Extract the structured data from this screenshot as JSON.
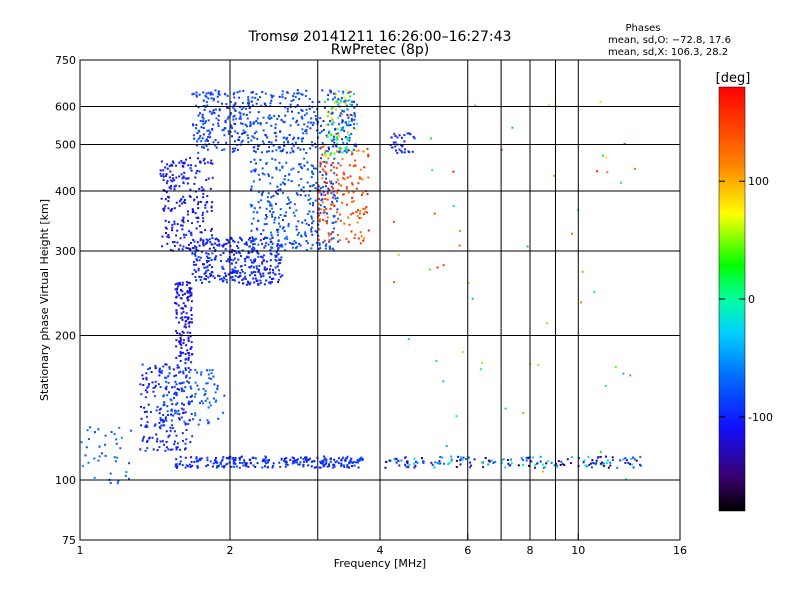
{
  "chart_data": {
    "type": "scatter",
    "title": "Tromsø 20141211 16:26:00–16:27:43",
    "subtitle": "RwPretec (8p)",
    "xlabel": "Frequency [MHz]",
    "ylabel": "Stationary phase Virtual Height [km]",
    "x_scale": "log",
    "y_scale": "log",
    "xlim": [
      1,
      16
    ],
    "ylim": [
      75,
      750
    ],
    "x_ticks": [
      1,
      2,
      4,
      6,
      8,
      10,
      16
    ],
    "x_tick_labels": [
      "1",
      "2",
      "4",
      "6",
      "8",
      "10",
      "16"
    ],
    "x_minor_gridlines": [
      3,
      7,
      9
    ],
    "y_ticks": [
      75,
      100,
      200,
      300,
      400,
      500,
      600,
      750
    ],
    "y_tick_labels": [
      "75",
      "100",
      "200",
      "300",
      "400",
      "500",
      "600",
      "750"
    ],
    "grid": true,
    "stats": {
      "heading": "Phases",
      "line_o": "mean, sd,O: −72.8, 17.6",
      "line_x": "mean, sd,X: 106.3, 28.2"
    },
    "colorbar": {
      "label": "[deg]",
      "range": [
        -180,
        180
      ],
      "ticks": [
        100,
        0,
        -100
      ],
      "tick_labels": [
        "100",
        "0",
        "-100"
      ]
    },
    "clusters": [
      {
        "name_hint": "E-layer trace",
        "x": [
          1.55,
          3.7
        ],
        "y": [
          106,
          112
        ],
        "phase": -95,
        "n": 260
      },
      {
        "name_hint": "E-layer trace extension",
        "x": [
          4.1,
          13.8
        ],
        "y": [
          106,
          112
        ],
        "phase": -85,
        "n": 170,
        "color_spread": 160
      },
      {
        "name_hint": "Lower F rise",
        "x": [
          1.32,
          1.68
        ],
        "y": [
          115,
          175
        ],
        "phase": -100,
        "n": 200
      },
      {
        "name_hint": "Lower F scatter",
        "x": [
          1.45,
          1.95
        ],
        "y": [
          130,
          170
        ],
        "phase": -75,
        "n": 90
      },
      {
        "name_hint": "Vertical F segment",
        "x": [
          1.55,
          1.68
        ],
        "y": [
          175,
          260
        ],
        "phase": -110,
        "n": 140
      },
      {
        "name_hint": "Low frequency scatter",
        "x": [
          1.0,
          1.28
        ],
        "y": [
          98,
          130
        ],
        "phase": -70,
        "n": 40
      },
      {
        "name_hint": "F1 cusp",
        "x": [
          1.68,
          2.55
        ],
        "y": [
          255,
          320
        ],
        "phase": -100,
        "n": 340
      },
      {
        "name_hint": "F2 trace",
        "x": [
          2.2,
          3.3
        ],
        "y": [
          300,
          470
        ],
        "phase": -80,
        "n": 320
      },
      {
        "name_hint": "F2 near critical",
        "x": [
          3.0,
          3.8
        ],
        "y": [
          310,
          500
        ],
        "phase": 140,
        "n": 160,
        "color_spread": 60
      },
      {
        "name_hint": "Upper spread F",
        "x": [
          1.68,
          3.6
        ],
        "y": [
          480,
          650
        ],
        "phase": -85,
        "n": 520
      },
      {
        "name_hint": "Upper spread hotspots",
        "x": [
          3.1,
          3.6
        ],
        "y": [
          470,
          650
        ],
        "phase": 40,
        "n": 80,
        "color_spread": 160
      },
      {
        "name_hint": "Left branch",
        "x": [
          1.45,
          1.85
        ],
        "y": [
          300,
          470
        ],
        "phase": -110,
        "n": 220
      },
      {
        "name_hint": "Sparse high frequency echoes",
        "x": [
          4.0,
          13.0
        ],
        "y": [
          100,
          620
        ],
        "phase": 60,
        "n": 55,
        "color_spread": 220
      },
      {
        "name_hint": "Echo cluster",
        "x": [
          4.2,
          4.7
        ],
        "y": [
          480,
          530
        ],
        "phase": -100,
        "n": 35
      }
    ]
  }
}
